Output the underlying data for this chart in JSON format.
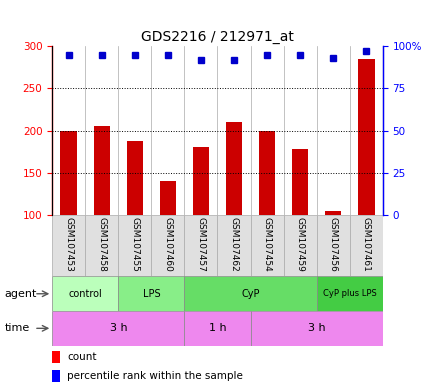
{
  "title": "GDS2216 / 212971_at",
  "samples": [
    "GSM107453",
    "GSM107458",
    "GSM107455",
    "GSM107460",
    "GSM107457",
    "GSM107462",
    "GSM107454",
    "GSM107459",
    "GSM107456",
    "GSM107461"
  ],
  "counts": [
    200,
    205,
    188,
    140,
    180,
    210,
    200,
    178,
    105,
    285
  ],
  "percentiles": [
    95,
    95,
    95,
    95,
    92,
    92,
    95,
    95,
    93,
    97
  ],
  "ylim_left": [
    100,
    300
  ],
  "ylim_right": [
    0,
    100
  ],
  "bar_color": "#cc0000",
  "dot_color": "#0000cc",
  "agent_groups": [
    {
      "label": "control",
      "start": 0,
      "end": 2,
      "color": "#bbffbb"
    },
    {
      "label": "LPS",
      "start": 2,
      "end": 4,
      "color": "#88ee88"
    },
    {
      "label": "CyP",
      "start": 4,
      "end": 8,
      "color": "#66dd66"
    },
    {
      "label": "CyP plus LPS",
      "start": 8,
      "end": 10,
      "color": "#44cc44"
    }
  ],
  "time_groups": [
    {
      "label": "3 h",
      "start": 0,
      "end": 4,
      "color": "#ee88ee"
    },
    {
      "label": "1 h",
      "start": 4,
      "end": 6,
      "color": "#ee88ee"
    },
    {
      "label": "3 h",
      "start": 6,
      "end": 10,
      "color": "#ee88ee"
    }
  ]
}
